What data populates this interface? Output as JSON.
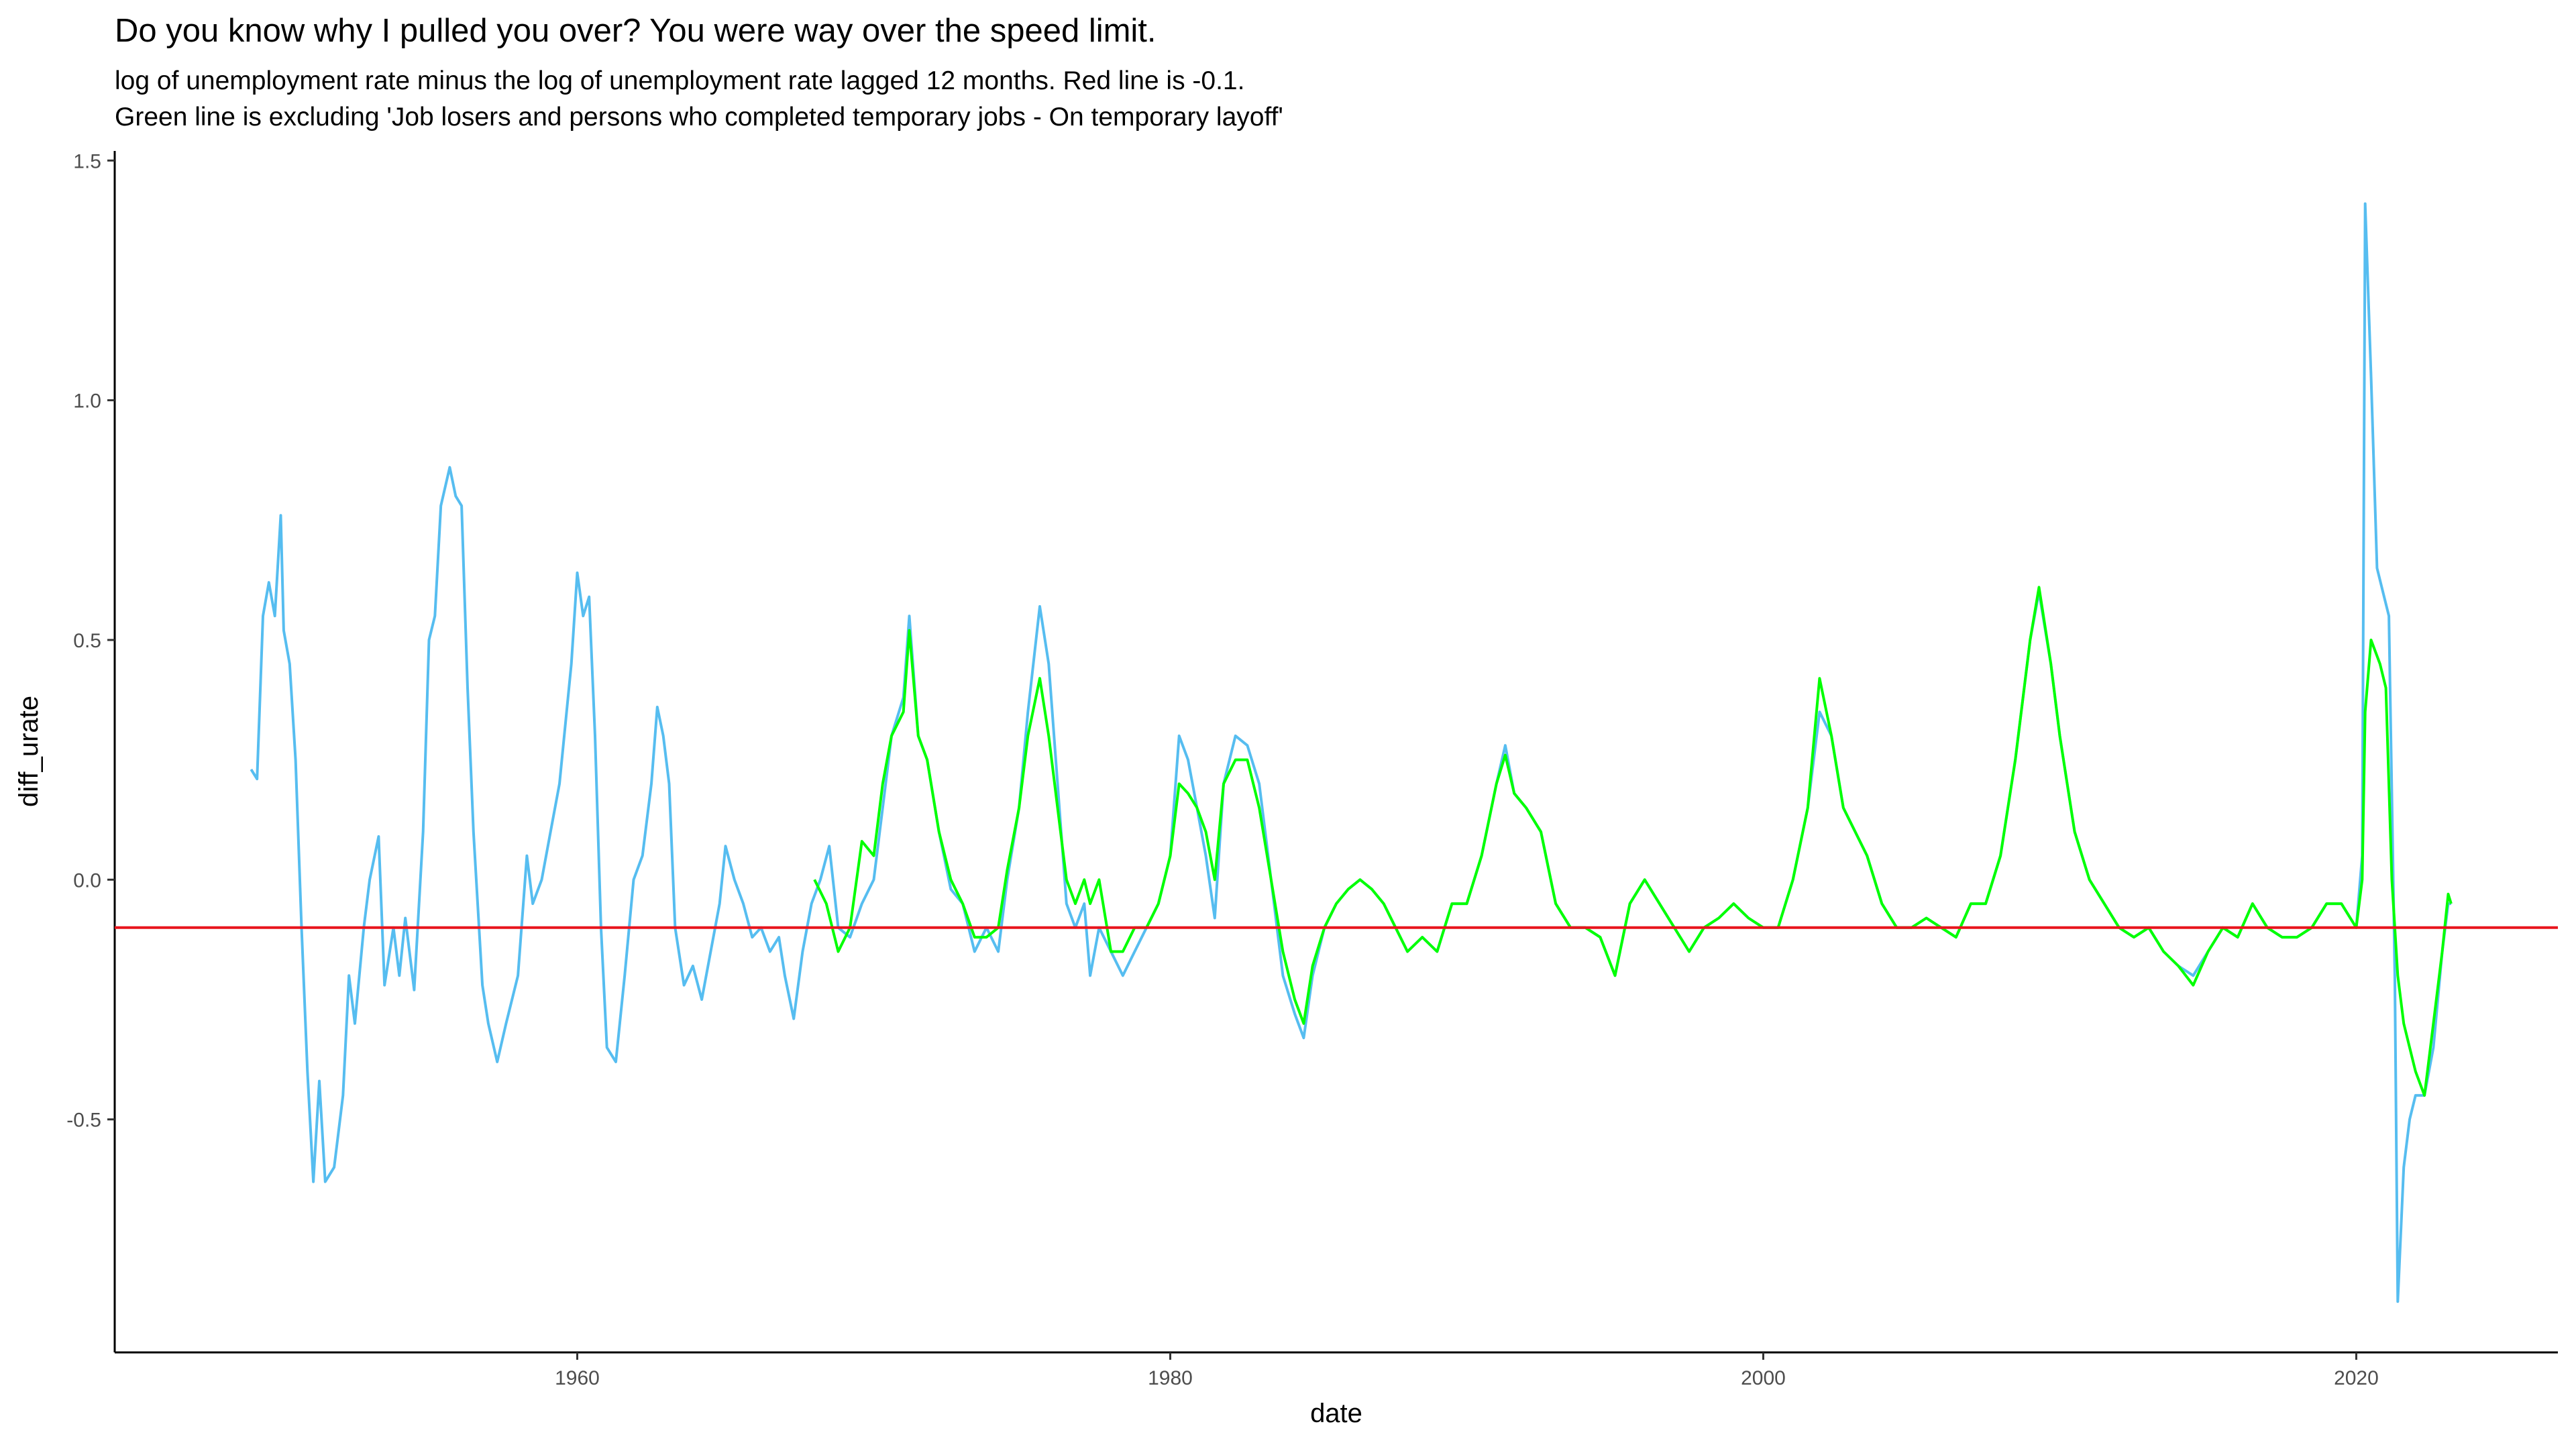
{
  "chart_data": {
    "type": "line",
    "title": "Do you know why I pulled you over? You were way over the speed limit.",
    "subtitle": [
      "log of unemployment rate minus the log of unemployment rate lagged 12 months. Red line is -0.1.",
      "Green line is excluding 'Job losers and persons who completed temporary jobs - On temporary layoff'"
    ],
    "x_label": "date",
    "y_label": "diff_urate",
    "xlim": [
      1944.4,
      2026.8
    ],
    "xticks": [
      1960,
      1980,
      2000,
      2020
    ],
    "ylim": [
      -0.986,
      1.52
    ],
    "yticks": [
      -0.5,
      {
        "value": 0,
        "label": "0.0"
      },
      0.5,
      {
        "value": 1,
        "label": "1.0"
      },
      1.5
    ],
    "grid": false,
    "reference_line": -0.1,
    "reference_color": "#e8141c",
    "series": [
      {
        "color": "#56bdf0",
        "x": [
          1949.0,
          1949.2,
          1949.4,
          1949.6,
          1949.8,
          1950.0,
          1950.1,
          1950.3,
          1950.5,
          1950.7,
          1950.9,
          1951.1,
          1951.3,
          1951.5,
          1951.8,
          1952.1,
          1952.3,
          1952.5,
          1952.8,
          1953.0,
          1953.3,
          1953.5,
          1953.8,
          1954.0,
          1954.2,
          1954.5,
          1954.8,
          1955.0,
          1955.2,
          1955.4,
          1955.7,
          1955.9,
          1956.1,
          1956.3,
          1956.5,
          1956.8,
          1957.0,
          1957.3,
          1957.6,
          1958.0,
          1958.3,
          1958.5,
          1958.8,
          1959.1,
          1959.4,
          1959.8,
          1960.0,
          1960.2,
          1960.4,
          1960.6,
          1960.8,
          1961.0,
          1961.3,
          1961.6,
          1961.9,
          1962.2,
          1962.5,
          1962.7,
          1962.9,
          1963.1,
          1963.3,
          1963.6,
          1963.9,
          1964.2,
          1964.5,
          1964.8,
          1965.0,
          1965.3,
          1965.6,
          1965.9,
          1966.2,
          1966.5,
          1966.8,
          1967.0,
          1967.3,
          1967.6,
          1967.9,
          1968.2,
          1968.5,
          1968.8,
          1969.2,
          1969.6,
          1970.0,
          1970.3,
          1970.6,
          1971.0,
          1971.2,
          1971.5,
          1971.8,
          1972.2,
          1972.6,
          1973.0,
          1973.4,
          1973.8,
          1974.2,
          1974.5,
          1974.9,
          1975.2,
          1975.6,
          1975.9,
          1976.2,
          1976.5,
          1976.8,
          1977.1,
          1977.3,
          1977.6,
          1978.0,
          1978.4,
          1978.8,
          1979.2,
          1979.6,
          1980.0,
          1980.3,
          1980.6,
          1980.9,
          1981.2,
          1981.5,
          1981.8,
          1982.2,
          1982.6,
          1983.0,
          1983.4,
          1983.8,
          1984.2,
          1984.5,
          1984.8,
          1985.2,
          1985.6,
          1986.0,
          1986.4,
          1986.8,
          1987.2,
          1987.6,
          1988.0,
          1988.5,
          1989.0,
          1989.5,
          1990.0,
          1990.5,
          1991.0,
          1991.3,
          1991.6,
          1992.0,
          1992.5,
          1993.0,
          1993.5,
          1994.0,
          1994.5,
          1995.0,
          1995.5,
          1996.0,
          1996.5,
          1997.0,
          1997.5,
          1998.0,
          1998.5,
          1999.0,
          1999.5,
          2000.0,
          2000.5,
          2001.0,
          2001.5,
          2001.9,
          2002.3,
          2002.7,
          2003.1,
          2003.5,
          2004.0,
          2004.5,
          2005.0,
          2005.5,
          2006.0,
          2006.5,
          2007.0,
          2007.5,
          2008.0,
          2008.5,
          2009.0,
          2009.3,
          2009.7,
          2010.0,
          2010.5,
          2011.0,
          2011.5,
          2012.0,
          2012.5,
          2013.0,
          2013.5,
          2014.0,
          2014.5,
          2015.0,
          2015.5,
          2016.0,
          2016.5,
          2017.0,
          2017.5,
          2018.0,
          2018.5,
          2019.0,
          2019.5,
          2020.0,
          2020.2,
          2020.3,
          2020.5,
          2020.7,
          2020.9,
          2021.1,
          2021.3,
          2021.4,
          2021.6,
          2021.8,
          2022.0,
          2022.3,
          2022.6,
          2022.9,
          2023.1,
          2023.2
        ],
        "values": [
          0.23,
          0.21,
          0.55,
          0.62,
          0.55,
          0.76,
          0.52,
          0.45,
          0.25,
          -0.1,
          -0.4,
          -0.63,
          -0.42,
          -0.63,
          -0.6,
          -0.45,
          -0.2,
          -0.3,
          -0.1,
          0.0,
          0.09,
          -0.22,
          -0.1,
          -0.2,
          -0.08,
          -0.23,
          0.1,
          0.5,
          0.55,
          0.78,
          0.86,
          0.8,
          0.78,
          0.4,
          0.1,
          -0.22,
          -0.3,
          -0.38,
          -0.3,
          -0.2,
          0.05,
          -0.05,
          0.0,
          0.1,
          0.2,
          0.45,
          0.64,
          0.55,
          0.59,
          0.3,
          -0.1,
          -0.35,
          -0.38,
          -0.2,
          0.0,
          0.05,
          0.2,
          0.36,
          0.3,
          0.2,
          -0.1,
          -0.22,
          -0.18,
          -0.25,
          -0.15,
          -0.05,
          0.07,
          0.0,
          -0.05,
          -0.12,
          -0.1,
          -0.15,
          -0.12,
          -0.2,
          -0.29,
          -0.15,
          -0.05,
          0.0,
          0.07,
          -0.1,
          -0.12,
          -0.05,
          0.0,
          0.15,
          0.3,
          0.38,
          0.55,
          0.3,
          0.25,
          0.1,
          -0.02,
          -0.05,
          -0.15,
          -0.1,
          -0.15,
          0.0,
          0.15,
          0.35,
          0.57,
          0.45,
          0.2,
          -0.05,
          -0.1,
          -0.05,
          -0.2,
          -0.1,
          -0.15,
          -0.2,
          -0.15,
          -0.1,
          -0.05,
          0.05,
          0.3,
          0.25,
          0.15,
          0.05,
          -0.08,
          0.2,
          0.3,
          0.28,
          0.2,
          0.0,
          -0.2,
          -0.28,
          -0.33,
          -0.2,
          -0.1,
          -0.05,
          -0.02,
          0.0,
          -0.02,
          -0.05,
          -0.1,
          -0.15,
          -0.12,
          -0.15,
          -0.05,
          -0.05,
          0.05,
          0.2,
          0.28,
          0.18,
          0.15,
          0.1,
          -0.05,
          -0.1,
          -0.1,
          -0.12,
          -0.2,
          -0.05,
          0.0,
          -0.05,
          -0.1,
          -0.15,
          -0.1,
          -0.08,
          -0.05,
          -0.08,
          -0.1,
          -0.1,
          0.0,
          0.15,
          0.35,
          0.3,
          0.15,
          0.1,
          0.05,
          -0.05,
          -0.1,
          -0.1,
          -0.08,
          -0.1,
          -0.12,
          -0.05,
          -0.05,
          0.05,
          0.25,
          0.5,
          0.6,
          0.45,
          0.3,
          0.1,
          0.0,
          -0.05,
          -0.1,
          -0.12,
          -0.1,
          -0.15,
          -0.18,
          -0.2,
          -0.15,
          -0.1,
          -0.12,
          -0.05,
          -0.1,
          -0.12,
          -0.12,
          -0.1,
          -0.05,
          -0.05,
          -0.1,
          0.05,
          1.41,
          1.05,
          0.65,
          0.6,
          0.55,
          -0.2,
          -0.88,
          -0.6,
          -0.5,
          -0.45,
          -0.45,
          -0.35,
          -0.15,
          -0.05,
          -0.05
        ]
      },
      {
        "color": "#00ff00",
        "x": [
          1968.0,
          1968.4,
          1968.8,
          1969.2,
          1969.6,
          1970.0,
          1970.3,
          1970.6,
          1971.0,
          1971.2,
          1971.5,
          1971.8,
          1972.2,
          1972.6,
          1973.0,
          1973.4,
          1973.8,
          1974.2,
          1974.5,
          1974.9,
          1975.2,
          1975.6,
          1975.9,
          1976.2,
          1976.5,
          1976.8,
          1977.1,
          1977.3,
          1977.6,
          1978.0,
          1978.4,
          1978.8,
          1979.2,
          1979.6,
          1980.0,
          1980.3,
          1980.6,
          1980.9,
          1981.2,
          1981.5,
          1981.8,
          1982.2,
          1982.6,
          1983.0,
          1983.4,
          1983.8,
          1984.2,
          1984.5,
          1984.8,
          1985.2,
          1985.6,
          1986.0,
          1986.4,
          1986.8,
          1987.2,
          1987.6,
          1988.0,
          1988.5,
          1989.0,
          1989.5,
          1990.0,
          1990.5,
          1991.0,
          1991.3,
          1991.6,
          1992.0,
          1992.5,
          1993.0,
          1993.5,
          1994.0,
          1994.5,
          1995.0,
          1995.5,
          1996.0,
          1996.5,
          1997.0,
          1997.5,
          1998.0,
          1998.5,
          1999.0,
          1999.5,
          2000.0,
          2000.5,
          2001.0,
          2001.5,
          2001.9,
          2002.3,
          2002.7,
          2003.1,
          2003.5,
          2004.0,
          2004.5,
          2005.0,
          2005.5,
          2006.0,
          2006.5,
          2007.0,
          2007.5,
          2008.0,
          2008.5,
          2009.0,
          2009.3,
          2009.7,
          2010.0,
          2010.5,
          2011.0,
          2011.5,
          2012.0,
          2012.5,
          2013.0,
          2013.5,
          2014.0,
          2014.5,
          2015.0,
          2015.5,
          2016.0,
          2016.5,
          2017.0,
          2017.5,
          2018.0,
          2018.5,
          2019.0,
          2019.5,
          2020.0,
          2020.2,
          2020.3,
          2020.5,
          2020.8,
          2021.0,
          2021.2,
          2021.4,
          2021.6,
          2021.8,
          2022.0,
          2022.3,
          2022.6,
          2022.9,
          2023.1,
          2023.2
        ],
        "values": [
          0.0,
          -0.05,
          -0.15,
          -0.1,
          0.08,
          0.05,
          0.2,
          0.3,
          0.35,
          0.52,
          0.3,
          0.25,
          0.1,
          0.0,
          -0.05,
          -0.12,
          -0.12,
          -0.1,
          0.02,
          0.15,
          0.3,
          0.42,
          0.3,
          0.15,
          0.0,
          -0.05,
          0.0,
          -0.05,
          0.0,
          -0.15,
          -0.15,
          -0.1,
          -0.1,
          -0.05,
          0.05,
          0.2,
          0.18,
          0.15,
          0.1,
          0.0,
          0.2,
          0.25,
          0.25,
          0.15,
          0.0,
          -0.15,
          -0.25,
          -0.3,
          -0.18,
          -0.1,
          -0.05,
          -0.02,
          0.0,
          -0.02,
          -0.05,
          -0.1,
          -0.15,
          -0.12,
          -0.15,
          -0.05,
          -0.05,
          0.05,
          0.2,
          0.26,
          0.18,
          0.15,
          0.1,
          -0.05,
          -0.1,
          -0.1,
          -0.12,
          -0.2,
          -0.05,
          0.0,
          -0.05,
          -0.1,
          -0.15,
          -0.1,
          -0.08,
          -0.05,
          -0.08,
          -0.1,
          -0.1,
          0.0,
          0.15,
          0.42,
          0.3,
          0.15,
          0.1,
          0.05,
          -0.05,
          -0.1,
          -0.1,
          -0.08,
          -0.1,
          -0.12,
          -0.05,
          -0.05,
          0.05,
          0.25,
          0.5,
          0.61,
          0.45,
          0.3,
          0.1,
          0.0,
          -0.05,
          -0.1,
          -0.12,
          -0.1,
          -0.15,
          -0.18,
          -0.22,
          -0.15,
          -0.1,
          -0.12,
          -0.05,
          -0.1,
          -0.12,
          -0.12,
          -0.1,
          -0.05,
          -0.05,
          -0.1,
          0.0,
          0.35,
          0.5,
          0.45,
          0.4,
          0.0,
          -0.2,
          -0.3,
          -0.35,
          -0.4,
          -0.45,
          -0.3,
          -0.15,
          -0.03,
          -0.05
        ]
      }
    ]
  }
}
